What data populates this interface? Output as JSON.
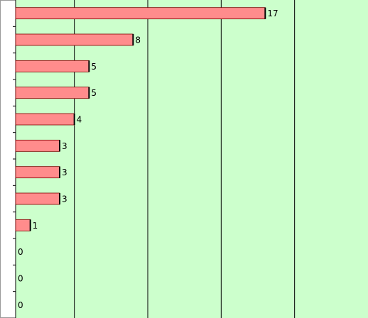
{
  "chart_data": {
    "type": "bar",
    "orientation": "horizontal",
    "categories": [
      null,
      null,
      null,
      null,
      null,
      null,
      null,
      null,
      null,
      null,
      null,
      null
    ],
    "values": [
      17,
      8,
      5,
      5,
      4,
      3,
      3,
      3,
      1,
      0,
      0,
      0
    ],
    "color": "#ff8c8c",
    "xlim": [
      0,
      24
    ],
    "xticks": [
      4,
      9,
      14,
      19
    ],
    "grid": true,
    "background": "#ccffcc"
  }
}
